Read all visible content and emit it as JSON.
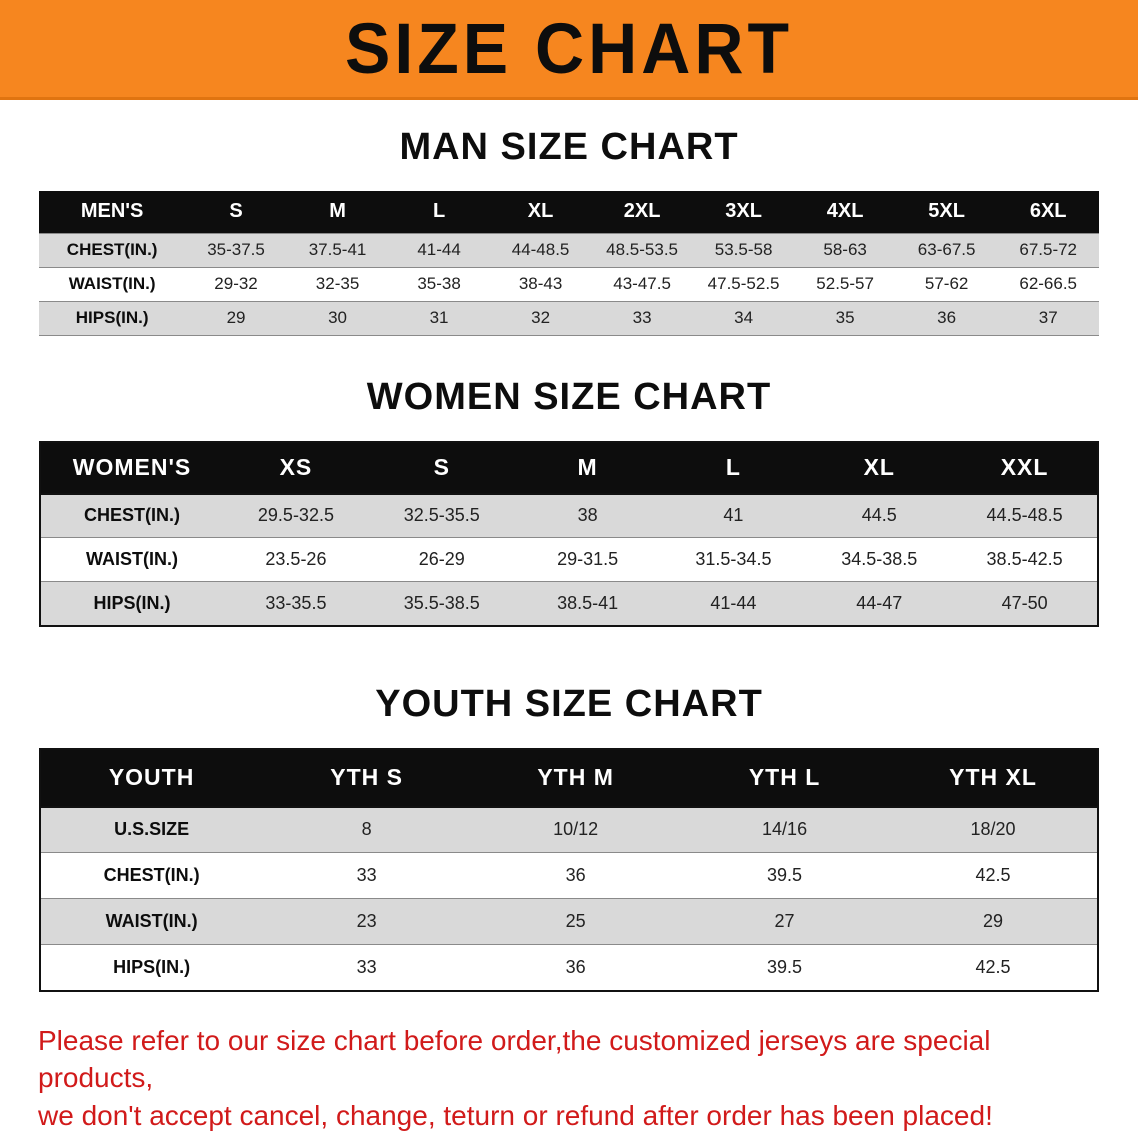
{
  "banner": {
    "title": "SIZE CHART",
    "bg_color": "#F6861F",
    "text_color": "#0d0d0d"
  },
  "sections": [
    {
      "id": "men",
      "heading": "MAN SIZE CHART",
      "columns": [
        "MEN'S",
        "S",
        "M",
        "L",
        "XL",
        "2XL",
        "3XL",
        "4XL",
        "5XL",
        "6XL"
      ],
      "rows": [
        {
          "label": "CHEST(IN.)",
          "values": [
            "35-37.5",
            "37.5-41",
            "41-44",
            "44-48.5",
            "48.5-53.5",
            "53.5-58",
            "58-63",
            "63-67.5",
            "67.5-72"
          ]
        },
        {
          "label": "WAIST(IN.)",
          "values": [
            "29-32",
            "32-35",
            "35-38",
            "38-43",
            "43-47.5",
            "47.5-52.5",
            "52.5-57",
            "57-62",
            "62-66.5"
          ]
        },
        {
          "label": "HIPS(IN.)",
          "values": [
            "29",
            "30",
            "31",
            "32",
            "33",
            "34",
            "35",
            "36",
            "37"
          ]
        }
      ]
    },
    {
      "id": "women",
      "heading": "WOMEN SIZE CHART",
      "columns": [
        "WOMEN'S",
        "XS",
        "S",
        "M",
        "L",
        "XL",
        "XXL"
      ],
      "rows": [
        {
          "label": "CHEST(IN.)",
          "values": [
            "29.5-32.5",
            "32.5-35.5",
            "38",
            "41",
            "44.5",
            "44.5-48.5"
          ]
        },
        {
          "label": "WAIST(IN.)",
          "values": [
            "23.5-26",
            "26-29",
            "29-31.5",
            "31.5-34.5",
            "34.5-38.5",
            "38.5-42.5"
          ]
        },
        {
          "label": "HIPS(IN.)",
          "values": [
            "33-35.5",
            "35.5-38.5",
            "38.5-41",
            "41-44",
            "44-47",
            "47-50"
          ]
        }
      ]
    },
    {
      "id": "youth",
      "heading": "YOUTH SIZE CHART",
      "columns": [
        "YOUTH",
        "YTH S",
        "YTH M",
        "YTH L",
        "YTH XL"
      ],
      "rows": [
        {
          "label": "U.S.SIZE",
          "values": [
            "8",
            "10/12",
            "14/16",
            "18/20"
          ]
        },
        {
          "label": "CHEST(IN.)",
          "values": [
            "33",
            "36",
            "39.5",
            "42.5"
          ]
        },
        {
          "label": "WAIST(IN.)",
          "values": [
            "23",
            "25",
            "27",
            "29"
          ]
        },
        {
          "label": "HIPS(IN.)",
          "values": [
            "33",
            "36",
            "39.5",
            "42.5"
          ]
        }
      ]
    }
  ],
  "disclaimer": {
    "line1": "Please refer to our size chart before order,the customized jerseys are special products,",
    "line2": "we don't accept cancel, change, teturn or refund after order has been placed!",
    "color": "#d11a1a"
  }
}
